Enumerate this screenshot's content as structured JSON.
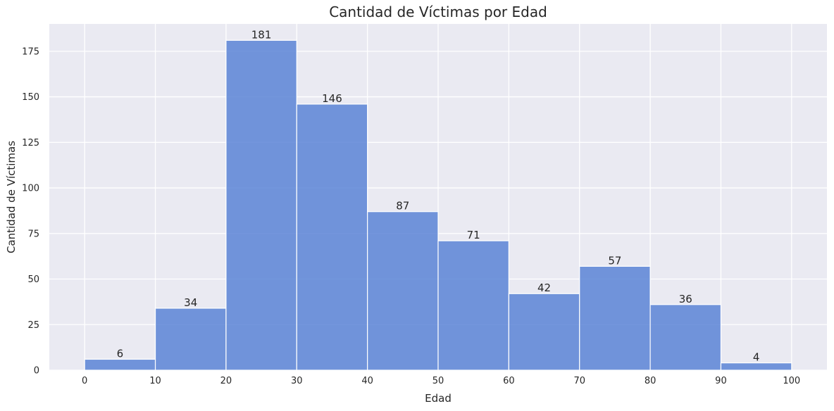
{
  "chart_data": {
    "type": "bar",
    "title": "Cantidad de Víctimas por Edad",
    "xlabel": "Edad",
    "ylabel": "Cantidad de Víctimas",
    "bins": [
      [
        0,
        10
      ],
      [
        10,
        20
      ],
      [
        20,
        30
      ],
      [
        30,
        40
      ],
      [
        40,
        50
      ],
      [
        50,
        60
      ],
      [
        60,
        70
      ],
      [
        70,
        80
      ],
      [
        80,
        90
      ],
      [
        90,
        100
      ]
    ],
    "values": [
      6,
      34,
      181,
      146,
      87,
      71,
      42,
      57,
      36,
      4
    ],
    "data_labels": [
      "6",
      "34",
      "181",
      "146",
      "87",
      "71",
      "42",
      "57",
      "36",
      "4"
    ],
    "xticks": [
      "0",
      "10",
      "20",
      "30",
      "40",
      "50",
      "60",
      "70",
      "80",
      "90",
      "100"
    ],
    "yticks": [
      "0",
      "25",
      "50",
      "75",
      "100",
      "125",
      "150",
      "175"
    ],
    "xlim": [
      -5,
      105
    ],
    "ylim": [
      0,
      190
    ],
    "grid": true,
    "colors": {
      "bar": "#5b84d6",
      "bar_edge": "#ffffff",
      "plot_bg": "#eaeaf2",
      "grid": "#ffffff"
    }
  }
}
